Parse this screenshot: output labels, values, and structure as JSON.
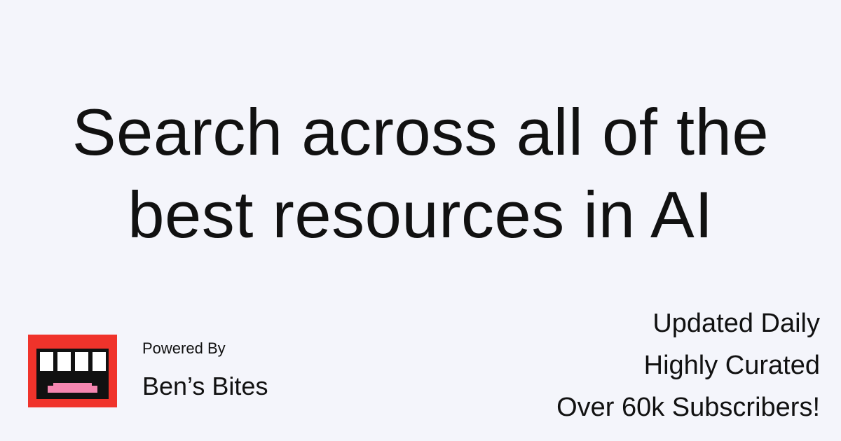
{
  "headline": {
    "line1": "Search across all of the",
    "line2": "best resources in AI"
  },
  "brand": {
    "powered_by": "Powered By",
    "name": "Ben’s Bites",
    "logo_icon": "bens-bites-logo-icon",
    "colors": {
      "logo_red": "#f0332b",
      "logo_black": "#111111",
      "tooth_white": "#ffffff",
      "tongue_pink": "#f586b0"
    }
  },
  "features": [
    "Updated Daily",
    "Highly Curated",
    "Over 60k Subscribers!"
  ],
  "colors": {
    "background": "#f4f5fb",
    "text": "#111111"
  }
}
